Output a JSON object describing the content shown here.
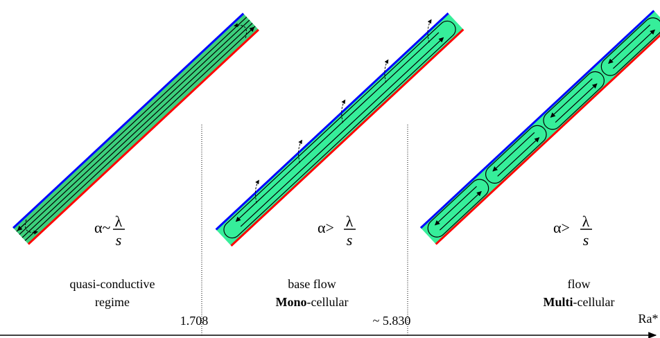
{
  "panels": [
    {
      "relation": "α~",
      "numerator": "λ",
      "denominator": "s",
      "caption": [
        {
          "text": "quasi-conductive"
        },
        {
          "text": "regime"
        }
      ]
    },
    {
      "relation": "α>",
      "numerator": "λ",
      "denominator": "s",
      "caption": [
        {
          "text": "base flow"
        },
        {
          "bold": "Mono",
          "rest": "-cellular"
        }
      ]
    },
    {
      "relation": "α>",
      "numerator": "λ",
      "denominator": "s",
      "caption": [
        {
          "text": "flow"
        },
        {
          "bold": "Multi",
          "rest": "-cellular"
        }
      ]
    }
  ],
  "thresholds": [
    "1.708",
    "~ 5.830"
  ],
  "axis_label": "Ra*"
}
